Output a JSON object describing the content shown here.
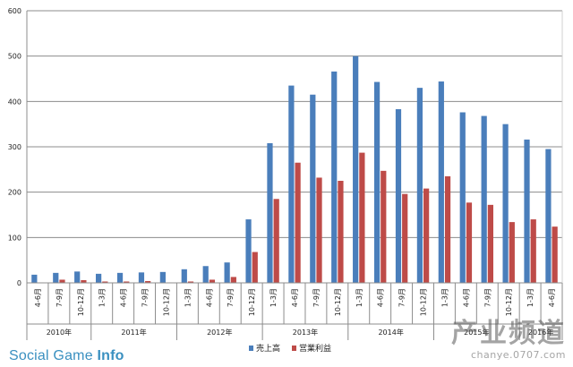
{
  "chart_data": {
    "type": "bar",
    "title": "",
    "xlabel": "",
    "ylabel": "",
    "ylim": [
      0,
      600
    ],
    "yticks": [
      0,
      100,
      200,
      300,
      400,
      500,
      600
    ],
    "grid": true,
    "legend_position": "bottom",
    "categories": [
      "4-6月",
      "7-9月",
      "10-12月",
      "1-3月",
      "4-6月",
      "7-9月",
      "10-12月",
      "1-3月",
      "4-6月",
      "7-9月",
      "10-12月",
      "1-3月",
      "4-6月",
      "7-9月",
      "10-12月",
      "1-3月",
      "4-6月",
      "7-9月",
      "10-12月",
      "1-3月",
      "4-6月",
      "7-9月",
      "10-12月",
      "1-3月",
      "4-6月"
    ],
    "year_groups": [
      {
        "label": "2010年",
        "count": 3
      },
      {
        "label": "2011年",
        "count": 4
      },
      {
        "label": "2012年",
        "count": 4
      },
      {
        "label": "2013年",
        "count": 4
      },
      {
        "label": "2014年",
        "count": 4
      },
      {
        "label": "2015年",
        "count": 4
      },
      {
        "label": "2016年",
        "count": 2
      }
    ],
    "series": [
      {
        "name": "売上高",
        "color": "#4a7ebb",
        "values": [
          18,
          22,
          25,
          20,
          22,
          23,
          24,
          30,
          37,
          45,
          140,
          308,
          435,
          415,
          466,
          500,
          443,
          383,
          430,
          444,
          376,
          368,
          350,
          316,
          295
        ]
      },
      {
        "name": "営業利益",
        "color": "#be4b48",
        "values": [
          1,
          7,
          6,
          3,
          3,
          4,
          1,
          3,
          7,
          13,
          68,
          185,
          265,
          232,
          225,
          287,
          247,
          196,
          208,
          235,
          177,
          172,
          134,
          140,
          124
        ]
      }
    ]
  },
  "brand": {
    "text_a": "Social Game ",
    "text_b": "Info"
  },
  "watermark": {
    "main": "产业频道",
    "sub": "chanye.0707.com"
  },
  "colors": {
    "grid": "#8c8c8c",
    "axis": "#8c8c8c",
    "text": "#222222"
  }
}
